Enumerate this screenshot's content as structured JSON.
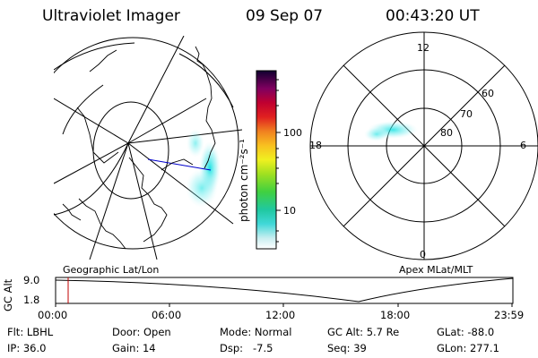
{
  "header": {
    "instrument": "Ultraviolet Imager",
    "date": "09 Sep 07",
    "time": "00:43:20 UT"
  },
  "left_panel": {
    "caption": "Geographic Lat/Lon"
  },
  "right_panel": {
    "caption": "Apex MLat/MLT",
    "mlt_labels": [
      "12",
      "18",
      "6",
      "0"
    ],
    "mlat_labels": [
      "60",
      "70",
      "80"
    ]
  },
  "colorbar": {
    "unit_label": "photon cm⁻²s⁻¹",
    "ticks": [
      "100",
      "10"
    ],
    "scale": "log"
  },
  "altitude_track": {
    "ylabel": "GC Alt",
    "y_ticks": [
      "9.0",
      "1.8"
    ],
    "x_ticks": [
      "00:00",
      "06:00",
      "12:00",
      "18:00",
      "23:59"
    ],
    "current_time_marker": "00:43"
  },
  "status": {
    "row1": [
      {
        "label": "Flt:",
        "value": "LBHL"
      },
      {
        "label": "Door:",
        "value": "Open"
      },
      {
        "label": "Mode:",
        "value": "Normal"
      },
      {
        "label": "GC Alt:",
        "value": "5.7 Re"
      },
      {
        "label": "GLat:",
        "value": "-88.0"
      }
    ],
    "row2": [
      {
        "label": "IP:",
        "value": "36.0"
      },
      {
        "label": "Gain:",
        "value": "14"
      },
      {
        "label": "Dsp:",
        "value": "-7.5"
      },
      {
        "label": "Seq:",
        "value": "39"
      },
      {
        "label": "GLon:",
        "value": "277.1"
      }
    ]
  },
  "colors": {
    "aurora": "#00e0e0",
    "track_marker": "#c00000",
    "orbit_line": "#0000cc"
  }
}
